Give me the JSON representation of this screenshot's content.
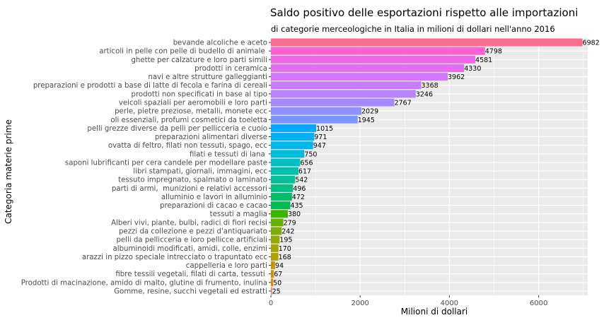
{
  "chart_data": {
    "type": "bar",
    "orientation": "horizontal",
    "title": "Saldo positivo delle esportazioni rispetto alle importazioni",
    "subtitle": "di categorie merceologiche in Italia in milioni di dollari nell'anno 2016",
    "xlabel": "Milioni di dollari",
    "ylabel": "Categoria materie prime",
    "xlim": [
      0,
      7100
    ],
    "xticks": [
      "0",
      "2000",
      "4000",
      "6000"
    ],
    "xtick_values": [
      0,
      2000,
      4000,
      6000
    ],
    "grid": true,
    "categories": [
      "bevande alcoliche e aceto",
      "articoli in pelle con pelle di budello di animale ",
      "ghette per calzature e loro parti simili",
      "prodotti in ceramica",
      "navi e altre strutture galleggianti",
      "preparazioni e prodotti a base di latte di fecola e farina di cereali",
      "prodotti non specificati in base al tipo",
      "veicoli spaziali per aeromobili e loro parti",
      "perle, pietre preziose, metalli, monete ecc",
      "oli essenziali, profumi cosmetici da toeletta",
      "pelli grezze diverse da pelli per pellicceria e cuoio",
      "preparazioni alimentari diverse",
      "ovatta di feltro, filati non tessuti, spago, ecc",
      "filati e tessuti di lana ",
      "saponi lubrificanti per cera candele per modellare paste",
      "libri stampati, giornali, immagini, ecc",
      "tessuto impregnato, spalmato o laminato",
      "parti di armi,  munizioni e relativi accessori",
      "alluminio e lavori in alluminio",
      "preparazioni di cacao e cacao",
      "tessuti a maglia",
      "Alberi vivi, piante, bulbi, radici di fiori recisi",
      "pezzi da collezione e pezzi d'antiquariato",
      "pelli da pellicceria e loro pellicce artificiali",
      "albuminoidi modificati, amidi, colle, enzimi",
      "arazzi in pizzo speciale intrecciato o trapuntato ecc",
      "cappelleria e loro parti",
      "fibre tessili vegetali, filati di carta, tessuti ",
      "Prodotti di macinazione, amido di malto, glutine di frumento, inulina",
      "Gomme, resine, succhi vegetali ed estratti"
    ],
    "values": [
      6982,
      4798,
      4581,
      4330,
      3962,
      3368,
      3246,
      2767,
      2029,
      1945,
      1015,
      971,
      947,
      750,
      656,
      617,
      542,
      496,
      472,
      435,
      380,
      279,
      242,
      195,
      170,
      168,
      94,
      67,
      50,
      25
    ],
    "labels": [
      "6982",
      "4798",
      "4581",
      "4330",
      "3962",
      "3368",
      "3246",
      "2767",
      "2029",
      "1945",
      "1015",
      "971",
      "947",
      "750",
      "656",
      "617",
      "542",
      "496",
      "472",
      "435",
      "380",
      "279",
      "242",
      "195",
      "170",
      "168",
      "94",
      "67",
      "50",
      "25"
    ],
    "colors": [
      "#ff6c90",
      "#fd61d1",
      "#f265e8",
      "#e56bf0",
      "#d575fe",
      "#c77cff",
      "#b983ff",
      "#a58aff",
      "#8f91ff",
      "#7c96ff",
      "#00a9ff",
      "#00b0f6",
      "#00b6eb",
      "#00bcd8",
      "#00bfc4",
      "#00c0b0",
      "#00c19a",
      "#00c086",
      "#00be67",
      "#00bb4e",
      "#39b600",
      "#64b200",
      "#7cae00",
      "#94a900",
      "#a3a500",
      "#b0a000",
      "#c49a00",
      "#d39200",
      "#e58700",
      "#f8766d"
    ]
  }
}
